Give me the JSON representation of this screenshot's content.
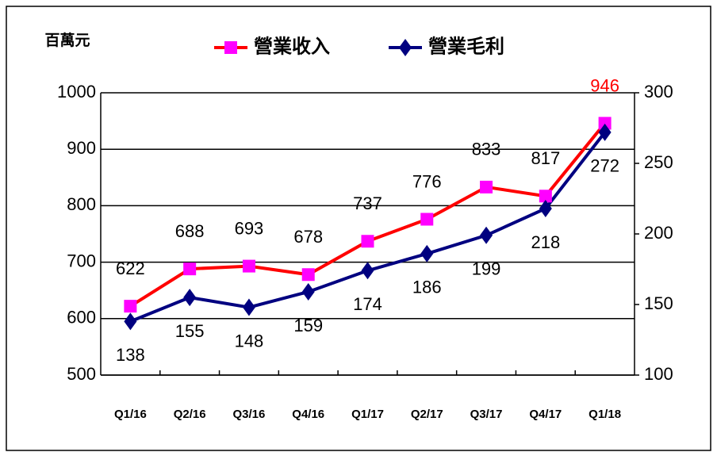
{
  "chart_data": {
    "type": "line",
    "y_label": "百萬元",
    "categories": [
      "Q1/16",
      "Q2/16",
      "Q3/16",
      "Q4/16",
      "Q1/17",
      "Q2/17",
      "Q3/17",
      "Q4/17",
      "Q1/18"
    ],
    "series": [
      {
        "name": "營業收入",
        "color": "#ff0000",
        "marker_color": "#ff00ff",
        "marker": "square",
        "values": [
          622,
          688,
          693,
          678,
          737,
          776,
          833,
          817,
          946
        ],
        "highlight": {
          "index": 8,
          "color": "#ff0000"
        }
      },
      {
        "name": "營業毛利",
        "color": "#000080",
        "marker_color": "#000080",
        "marker": "diamond",
        "axis": "y2",
        "values": [
          138,
          155,
          148,
          159,
          174,
          186,
          199,
          218,
          272
        ]
      }
    ],
    "ylim": [
      500,
      1000
    ],
    "yticks": [
      500,
      600,
      700,
      800,
      900,
      1000
    ],
    "y2lim": [
      100,
      300
    ],
    "y2ticks": [
      100,
      150,
      200,
      250,
      300
    ],
    "grid": true,
    "legend": "top"
  }
}
